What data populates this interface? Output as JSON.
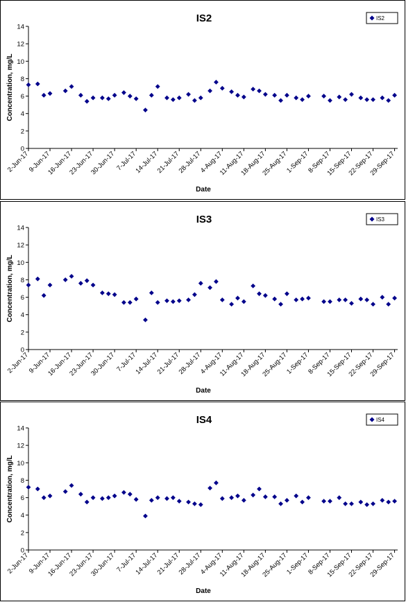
{
  "chart_data": [
    {
      "type": "scatter",
      "title": "IS2",
      "xlabel": "Date",
      "ylabel": "Concentration, mg/L",
      "ylim": [
        0,
        14
      ],
      "yticks": [
        0,
        2,
        4,
        6,
        8,
        10,
        12,
        14
      ],
      "xlim": [
        "2-Jun-17",
        "30-Sep-17"
      ],
      "xticks": [
        "2-Jun-17",
        "9-Jun-17",
        "16-Jun-17",
        "23-Jun-17",
        "30-Jun-17",
        "7-Jul-17",
        "14-Jul-17",
        "21-Jul-17",
        "28-Jul-17",
        "4-Aug-17",
        "11-Aug-17",
        "18-Aug-17",
        "25-Aug-17",
        "1-Sep-17",
        "8-Sep-17",
        "15-Sep-17",
        "22-Sep-17",
        "29-Sep-17"
      ],
      "grid": false,
      "legend_position": "top-right",
      "marker_color": "#00008B",
      "series": [
        {
          "name": "IS2",
          "x": [
            "2-Jun-17",
            "5-Jun-17",
            "7-Jun-17",
            "9-Jun-17",
            "14-Jun-17",
            "16-Jun-17",
            "19-Jun-17",
            "21-Jun-17",
            "23-Jun-17",
            "26-Jun-17",
            "28-Jun-17",
            "30-Jun-17",
            "3-Jul-17",
            "5-Jul-17",
            "7-Jul-17",
            "10-Jul-17",
            "12-Jul-17",
            "14-Jul-17",
            "17-Jul-17",
            "19-Jul-17",
            "21-Jul-17",
            "24-Jul-17",
            "26-Jul-17",
            "28-Jul-17",
            "31-Jul-17",
            "2-Aug-17",
            "4-Aug-17",
            "7-Aug-17",
            "9-Aug-17",
            "11-Aug-17",
            "14-Aug-17",
            "16-Aug-17",
            "18-Aug-17",
            "21-Aug-17",
            "23-Aug-17",
            "25-Aug-17",
            "28-Aug-17",
            "30-Aug-17",
            "1-Sep-17",
            "6-Sep-17",
            "8-Sep-17",
            "11-Sep-17",
            "13-Sep-17",
            "15-Sep-17",
            "18-Sep-17",
            "20-Sep-17",
            "22-Sep-17",
            "25-Sep-17",
            "27-Sep-17",
            "29-Sep-17"
          ],
          "y": [
            7.3,
            7.4,
            6.1,
            6.3,
            6.6,
            7.1,
            6.1,
            5.4,
            5.8,
            5.8,
            5.7,
            6.1,
            6.4,
            6.0,
            5.7,
            4.4,
            6.1,
            7.1,
            5.8,
            5.6,
            5.8,
            6.2,
            5.5,
            5.8,
            6.6,
            7.6,
            6.9,
            6.5,
            6.1,
            5.9,
            6.8,
            6.6,
            6.2,
            6.1,
            5.5,
            6.1,
            5.8,
            5.6,
            6.0,
            6.0,
            5.5,
            5.9,
            5.6,
            6.2,
            5.8,
            5.6,
            5.6,
            5.8,
            5.5,
            6.1
          ]
        }
      ]
    },
    {
      "type": "scatter",
      "title": "IS3",
      "xlabel": "Date",
      "ylabel": "Concentration, mg/L",
      "ylim": [
        0,
        14
      ],
      "yticks": [
        0,
        2,
        4,
        6,
        8,
        10,
        12,
        14
      ],
      "xlim": [
        "2-Jun-17",
        "30-Sep-17"
      ],
      "xticks": [
        "2-Jun-17",
        "9-Jun-17",
        "16-Jun-17",
        "23-Jun-17",
        "30-Jun-17",
        "7-Jul-17",
        "14-Jul-17",
        "21-Jul-17",
        "28-Jul-17",
        "4-Aug-17",
        "11-Aug-17",
        "18-Aug-17",
        "25-Aug-17",
        "1-Sep-17",
        "8-Sep-17",
        "15-Sep-17",
        "22-Sep-17",
        "29-Sep-17"
      ],
      "grid": false,
      "legend_position": "top-right",
      "marker_color": "#00008B",
      "series": [
        {
          "name": "IS3",
          "x": [
            "2-Jun-17",
            "5-Jun-17",
            "7-Jun-17",
            "9-Jun-17",
            "14-Jun-17",
            "16-Jun-17",
            "19-Jun-17",
            "21-Jun-17",
            "23-Jun-17",
            "26-Jun-17",
            "28-Jun-17",
            "30-Jun-17",
            "3-Jul-17",
            "5-Jul-17",
            "7-Jul-17",
            "10-Jul-17",
            "12-Jul-17",
            "14-Jul-17",
            "17-Jul-17",
            "19-Jul-17",
            "21-Jul-17",
            "24-Jul-17",
            "26-Jul-17",
            "28-Jul-17",
            "31-Jul-17",
            "2-Aug-17",
            "4-Aug-17",
            "7-Aug-17",
            "9-Aug-17",
            "11-Aug-17",
            "14-Aug-17",
            "16-Aug-17",
            "18-Aug-17",
            "21-Aug-17",
            "23-Aug-17",
            "25-Aug-17",
            "28-Aug-17",
            "30-Aug-17",
            "1-Sep-17",
            "6-Sep-17",
            "8-Sep-17",
            "11-Sep-17",
            "13-Sep-17",
            "15-Sep-17",
            "18-Sep-17",
            "20-Sep-17",
            "22-Sep-17",
            "25-Sep-17",
            "27-Sep-17",
            "29-Sep-17"
          ],
          "y": [
            7.4,
            8.1,
            6.2,
            7.4,
            8.0,
            8.4,
            7.6,
            7.9,
            7.4,
            6.5,
            6.4,
            6.3,
            5.4,
            5.4,
            5.8,
            3.4,
            6.5,
            5.4,
            5.6,
            5.5,
            5.6,
            5.7,
            6.3,
            7.6,
            7.1,
            7.8,
            5.7,
            5.2,
            5.9,
            5.5,
            7.3,
            6.4,
            6.2,
            5.8,
            5.2,
            6.4,
            5.7,
            5.8,
            5.9,
            5.5,
            5.5,
            5.7,
            5.7,
            5.3,
            5.8,
            5.7,
            5.2,
            6.0,
            5.2,
            5.9
          ]
        }
      ]
    },
    {
      "type": "scatter",
      "title": "IS4",
      "xlabel": "Date",
      "ylabel": "Concentration, mg/L",
      "ylim": [
        0,
        14
      ],
      "yticks": [
        0,
        2,
        4,
        6,
        8,
        10,
        12,
        14
      ],
      "xlim": [
        "2-Jun-17",
        "30-Sep-17"
      ],
      "xticks": [
        "2-Jun-17",
        "9-Jun-17",
        "16-Jun-17",
        "23-Jun-17",
        "30-Jun-17",
        "7-Jul-17",
        "14-Jul-17",
        "21-Jul-17",
        "28-Jul-17",
        "4-Aug-17",
        "11-Aug-17",
        "18-Aug-17",
        "25-Aug-17",
        "1-Sep-17",
        "8-Sep-17",
        "15-Sep-17",
        "22-Sep-17",
        "29-Sep-17"
      ],
      "grid": false,
      "legend_position": "top-right",
      "marker_color": "#00008B",
      "series": [
        {
          "name": "IS4",
          "x": [
            "2-Jun-17",
            "5-Jun-17",
            "7-Jun-17",
            "9-Jun-17",
            "14-Jun-17",
            "16-Jun-17",
            "19-Jun-17",
            "21-Jun-17",
            "23-Jun-17",
            "26-Jun-17",
            "28-Jun-17",
            "30-Jun-17",
            "3-Jul-17",
            "5-Jul-17",
            "7-Jul-17",
            "10-Jul-17",
            "12-Jul-17",
            "14-Jul-17",
            "17-Jul-17",
            "19-Jul-17",
            "21-Jul-17",
            "24-Jul-17",
            "26-Jul-17",
            "28-Jul-17",
            "31-Jul-17",
            "2-Aug-17",
            "4-Aug-17",
            "7-Aug-17",
            "9-Aug-17",
            "11-Aug-17",
            "14-Aug-17",
            "16-Aug-17",
            "18-Aug-17",
            "21-Aug-17",
            "23-Aug-17",
            "25-Aug-17",
            "28-Aug-17",
            "30-Aug-17",
            "1-Sep-17",
            "6-Sep-17",
            "8-Sep-17",
            "11-Sep-17",
            "13-Sep-17",
            "15-Sep-17",
            "18-Sep-17",
            "20-Sep-17",
            "22-Sep-17",
            "25-Sep-17",
            "27-Sep-17",
            "29-Sep-17"
          ],
          "y": [
            7.2,
            7.0,
            6.0,
            6.2,
            6.7,
            7.4,
            6.4,
            5.5,
            6.0,
            5.9,
            6.0,
            6.2,
            6.6,
            6.4,
            5.8,
            3.9,
            5.7,
            6.0,
            5.9,
            6.0,
            5.6,
            5.5,
            5.3,
            5.2,
            7.1,
            7.7,
            5.9,
            6.0,
            6.2,
            5.7,
            6.3,
            7.0,
            6.1,
            6.1,
            5.3,
            5.7,
            6.2,
            5.5,
            6.0,
            5.6,
            5.6,
            6.0,
            5.3,
            5.3,
            5.5,
            5.2,
            5.3,
            5.7,
            5.5,
            5.6
          ]
        }
      ]
    }
  ]
}
